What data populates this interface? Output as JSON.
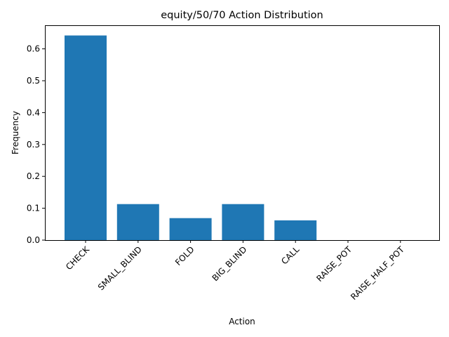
{
  "chart_data": {
    "type": "bar",
    "title": "equity/50/70 Action Distribution",
    "xlabel": "Action",
    "ylabel": "Frequency",
    "categories": [
      "CHECK",
      "SMALL_BLIND",
      "FOLD",
      "BIG_BLIND",
      "CALL",
      "RAISE_POT",
      "RAISE_HALF_POT"
    ],
    "values": [
      0.642,
      0.113,
      0.069,
      0.113,
      0.062,
      0.0,
      0.0
    ],
    "ylim": [
      0,
      0.674
    ],
    "yticks": [
      0.0,
      0.1,
      0.2,
      0.3,
      0.4,
      0.5,
      0.6
    ],
    "ytick_labels": [
      "0.0",
      "0.1",
      "0.2",
      "0.3",
      "0.4",
      "0.5",
      "0.6"
    ],
    "bar_color": "#1f77b4",
    "grid": false,
    "legend": "none"
  }
}
